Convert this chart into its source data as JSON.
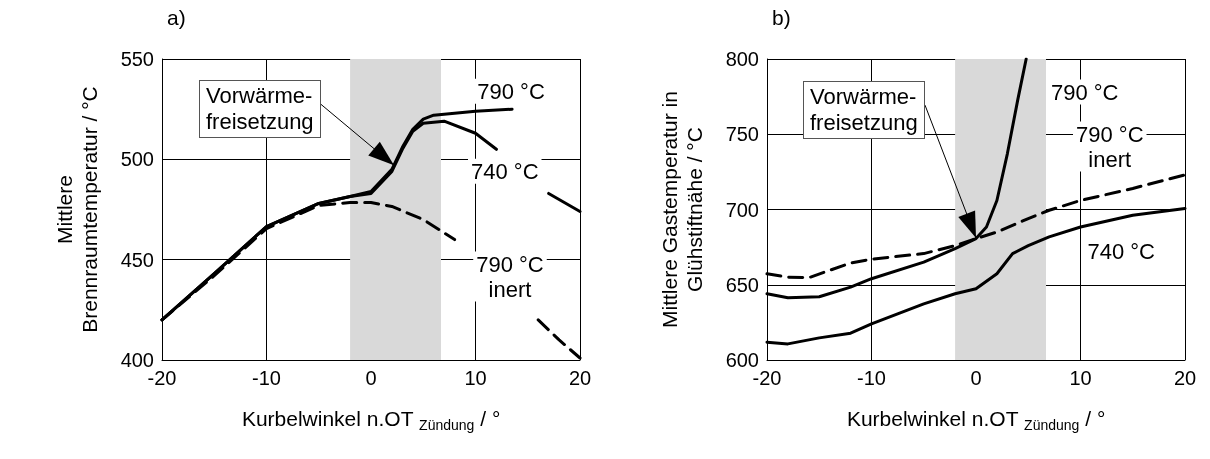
{
  "chart_data": [
    {
      "type": "line",
      "title": "a)",
      "xlabel": "Kurbelwinkel n.OT $_{Zündung}$ / °",
      "ylabel": "Mittlere\nBrennraumtemperatur / °C",
      "xlim": [
        -20,
        20
      ],
      "xticks": [
        -20,
        -10,
        0,
        10,
        20
      ],
      "ylim": [
        400,
        550
      ],
      "yticks": [
        400,
        450,
        500,
        550
      ],
      "grid": true,
      "marker": "none",
      "bands": [
        {
          "axis": "x",
          "from": -2,
          "to": 6.7,
          "color": "#d9d9d9"
        }
      ],
      "annotations": [
        {
          "text": "Vorwärme-\nfreisetzung",
          "x": 2.2,
          "y": 497
        }
      ],
      "series": [
        {
          "name": "790 °C",
          "color": "#000000",
          "line_style": "solid",
          "x": [
            -20,
            -15,
            -10,
            -5,
            -2,
            0,
            2,
            3,
            4,
            5,
            6,
            8,
            10,
            13.5
          ],
          "values": [
            420,
            443,
            466.5,
            478,
            481.5,
            484,
            495,
            506,
            515,
            520,
            522,
            523,
            524,
            525
          ]
        },
        {
          "name": "740 °C",
          "color": "#000000",
          "line_style": "solid",
          "x": [
            -20,
            -15,
            -10,
            -5,
            -2,
            0,
            2,
            3,
            4,
            5,
            7,
            10,
            12,
            15,
            17,
            20
          ],
          "values": [
            420,
            443,
            466.5,
            478,
            481.5,
            483,
            494,
            505,
            514,
            518,
            519,
            513,
            505,
            null,
            483,
            474
          ]
        },
        {
          "name": "790 °C\ninert",
          "color": "#000000",
          "line_style": "dashed",
          "x": [
            -20,
            -15,
            -10,
            -5,
            -2,
            0,
            2,
            5,
            8,
            10,
            13,
            16,
            18,
            20
          ],
          "values": [
            420,
            442,
            465.5,
            477,
            478.5,
            478.5,
            476.5,
            470,
            460,
            null,
            null,
            420,
            410,
            401
          ]
        }
      ]
    },
    {
      "type": "line",
      "title": "b)",
      "xlabel": "Kurbelwinkel n.OT $_{Zündung}$ / °",
      "ylabel": "Mittlere Gastemperatur in\nGlühstiftnähe / °C",
      "xlim": [
        -20,
        20
      ],
      "xticks": [
        -20,
        -10,
        0,
        10,
        20
      ],
      "ylim": [
        600,
        800
      ],
      "yticks": [
        600,
        650,
        700,
        750,
        800
      ],
      "grid": true,
      "marker": "none",
      "bands": [
        {
          "axis": "x",
          "from": -2,
          "to": 6.7,
          "color": "#d9d9d9"
        }
      ],
      "annotations": [
        {
          "text": "Vorwärme-\nfreisetzung",
          "x": 0,
          "y": 681
        }
      ],
      "series": [
        {
          "name": "790 °C",
          "color": "#000000",
          "line_style": "solid",
          "x": [
            -20,
            -18,
            -15,
            -12,
            -10,
            -5,
            -2,
            0,
            1,
            2,
            3,
            4,
            4.8
          ],
          "values": [
            644,
            641.3,
            642,
            648.4,
            654,
            665,
            674,
            680.7,
            688.4,
            706,
            737,
            773,
            800
          ]
        },
        {
          "name": "790 °C\ninert",
          "color": "#000000",
          "line_style": "dashed",
          "x": [
            -20,
            -18,
            -16,
            -14,
            -12,
            -10,
            -5,
            -2,
            0,
            2,
            5,
            7,
            10,
            15,
            20
          ],
          "values": [
            657.3,
            655,
            654.7,
            659.6,
            664.4,
            667,
            670.7,
            676,
            680.7,
            685,
            694,
            699.5,
            706,
            714,
            723
          ]
        },
        {
          "name": "740 °C",
          "color": "#000000",
          "line_style": "solid",
          "x": [
            -20,
            -18,
            -15,
            -12,
            -10,
            -5,
            -2,
            0,
            2,
            3.5,
            5,
            7,
            10,
            15,
            20
          ],
          "values": [
            611.8,
            610.7,
            614.7,
            617.8,
            624,
            637.3,
            644,
            647.3,
            657.3,
            670.7,
            676,
            681.8,
            688.4,
            696.2,
            700.7
          ]
        }
      ]
    }
  ]
}
